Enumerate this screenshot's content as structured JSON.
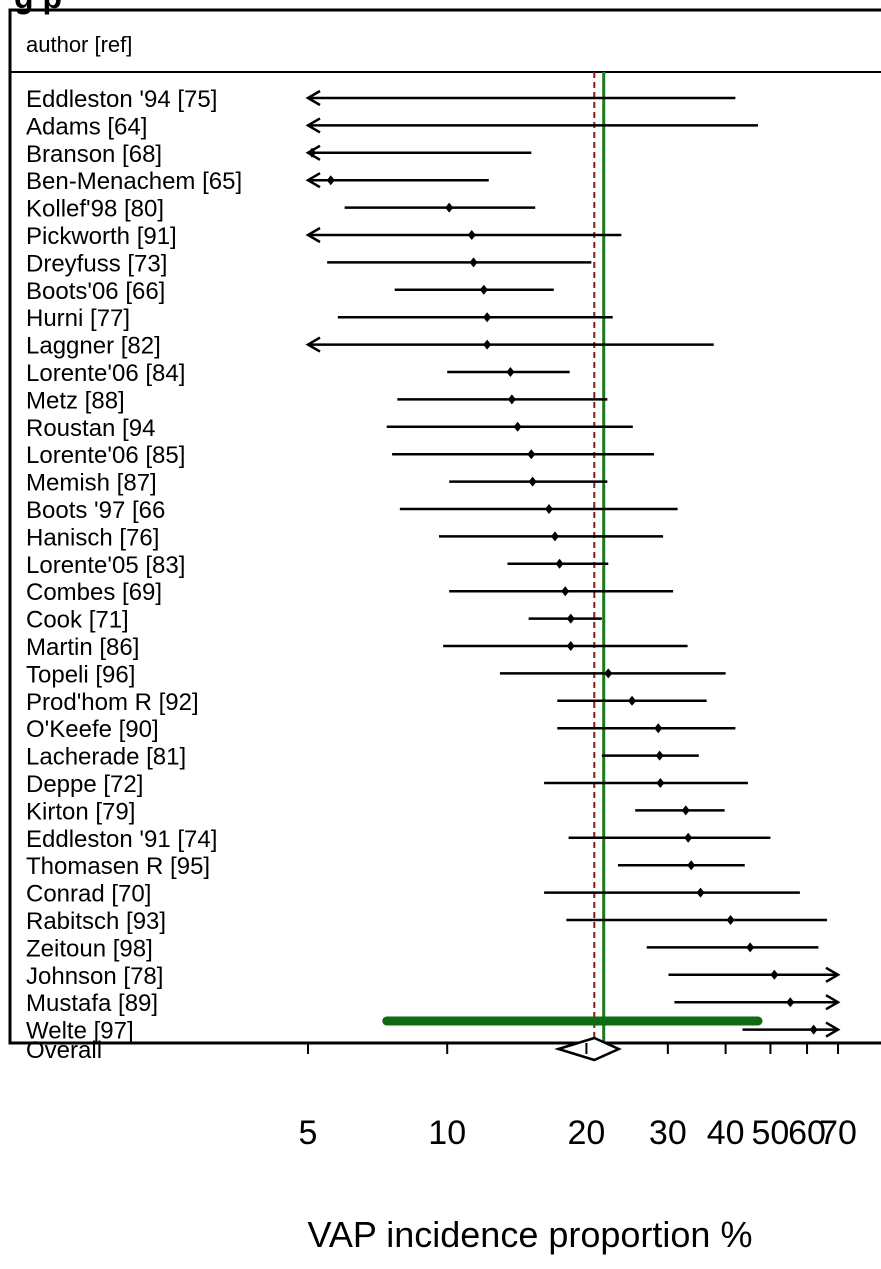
{
  "chart_data": {
    "type": "forest",
    "title_partial": "g p",
    "header": "author [ref]",
    "xlabel": "VAP incidence proportion %",
    "xscale": "log",
    "xlim": [
      5,
      70
    ],
    "xticks": [
      5,
      10,
      20,
      30,
      40,
      50,
      60,
      70
    ],
    "xtick_labels": [
      "5",
      "10",
      "20",
      "30",
      "40",
      "50",
      "60",
      "70"
    ],
    "reference_lines": {
      "overall_estimate": {
        "value": 20.8,
        "style": "dashed",
        "color": "#8b1a1a"
      },
      "pooled_line": {
        "value": 21.8,
        "style": "solid",
        "color": "#1b7a1b"
      }
    },
    "studies": [
      {
        "label": "Eddleston '94 [75]",
        "est": 1.0,
        "lo": 0.1,
        "hi": 42,
        "arrow_left": true,
        "arrow_right": false,
        "show_point": false
      },
      {
        "label": "Adams [64]",
        "est": 1.0,
        "lo": 0.1,
        "hi": 47,
        "arrow_left": true,
        "arrow_right": false,
        "show_point": false
      },
      {
        "label": "Branson [68]",
        "est": 5.1,
        "lo": 0.1,
        "hi": 15.2,
        "arrow_left": true,
        "arrow_right": false,
        "show_point": true
      },
      {
        "label": "Ben-Menachem [65]",
        "est": 5.6,
        "lo": 0.1,
        "hi": 12.3,
        "arrow_left": true,
        "arrow_right": false,
        "show_point": true
      },
      {
        "label": "Kollef'98 [80]",
        "est": 10.1,
        "lo": 6.0,
        "hi": 15.5,
        "arrow_left": false,
        "arrow_right": false,
        "show_point": true
      },
      {
        "label": "Pickworth [91]",
        "est": 11.3,
        "lo": 0.1,
        "hi": 23.8,
        "arrow_left": true,
        "arrow_right": false,
        "show_point": true
      },
      {
        "label": "Dreyfuss [73]",
        "est": 11.4,
        "lo": 5.5,
        "hi": 20.5,
        "arrow_left": false,
        "arrow_right": false,
        "show_point": true
      },
      {
        "label": "Boots'06 [66]",
        "est": 12.0,
        "lo": 7.7,
        "hi": 17.0,
        "arrow_left": false,
        "arrow_right": false,
        "show_point": true
      },
      {
        "label": "Hurni [77]",
        "est": 12.2,
        "lo": 5.8,
        "hi": 22.8,
        "arrow_left": false,
        "arrow_right": false,
        "show_point": true
      },
      {
        "label": "Laggner [82]",
        "est": 12.2,
        "lo": 0.1,
        "hi": 37.7,
        "arrow_left": true,
        "arrow_right": false,
        "show_point": true
      },
      {
        "label": "Lorente'06 [84]",
        "est": 13.7,
        "lo": 10.0,
        "hi": 18.4,
        "arrow_left": false,
        "arrow_right": false,
        "show_point": true
      },
      {
        "label": "Metz [88]",
        "est": 13.8,
        "lo": 7.8,
        "hi": 22.2,
        "arrow_left": false,
        "arrow_right": false,
        "show_point": true
      },
      {
        "label": "Roustan [94",
        "est": 14.2,
        "lo": 7.4,
        "hi": 25.2,
        "arrow_left": false,
        "arrow_right": false,
        "show_point": true
      },
      {
        "label": "Lorente'06 [85]",
        "est": 15.2,
        "lo": 7.6,
        "hi": 28.0,
        "arrow_left": false,
        "arrow_right": false,
        "show_point": true
      },
      {
        "label": "Memish [87]",
        "est": 15.3,
        "lo": 10.1,
        "hi": 22.2,
        "arrow_left": false,
        "arrow_right": false,
        "show_point": true
      },
      {
        "label": "Boots '97 [66",
        "est": 16.6,
        "lo": 7.9,
        "hi": 31.5,
        "arrow_left": false,
        "arrow_right": false,
        "show_point": true
      },
      {
        "label": "Hanisch [76]",
        "est": 17.1,
        "lo": 9.6,
        "hi": 29.3,
        "arrow_left": false,
        "arrow_right": false,
        "show_point": true
      },
      {
        "label": "Lorente'05 [83]",
        "est": 17.5,
        "lo": 13.5,
        "hi": 22.3,
        "arrow_left": false,
        "arrow_right": false,
        "show_point": true
      },
      {
        "label": "Combes [69]",
        "est": 18.0,
        "lo": 10.1,
        "hi": 30.8,
        "arrow_left": false,
        "arrow_right": false,
        "show_point": true
      },
      {
        "label": "Cook [71]",
        "est": 18.5,
        "lo": 15.0,
        "hi": 21.6,
        "arrow_left": false,
        "arrow_right": false,
        "show_point": true
      },
      {
        "label": "Martin [86]",
        "est": 18.5,
        "lo": 9.8,
        "hi": 33.1,
        "arrow_left": false,
        "arrow_right": false,
        "show_point": true
      },
      {
        "label": "Topeli [96]",
        "est": 22.3,
        "lo": 13.0,
        "hi": 40.0,
        "arrow_left": false,
        "arrow_right": false,
        "show_point": true
      },
      {
        "label": "Prod'hom R [92]",
        "est": 25.1,
        "lo": 17.3,
        "hi": 36.4,
        "arrow_left": false,
        "arrow_right": false,
        "show_point": true
      },
      {
        "label": "O'Keefe [90]",
        "est": 28.6,
        "lo": 17.3,
        "hi": 42.0,
        "arrow_left": false,
        "arrow_right": false,
        "show_point": true
      },
      {
        "label": "Lacherade [81]",
        "est": 28.8,
        "lo": 21.6,
        "hi": 35.0,
        "arrow_left": false,
        "arrow_right": false,
        "show_point": true
      },
      {
        "label": "Deppe [72]",
        "est": 28.9,
        "lo": 16.2,
        "hi": 44.7,
        "arrow_left": false,
        "arrow_right": false,
        "show_point": true
      },
      {
        "label": "Kirton [79]",
        "est": 32.8,
        "lo": 25.5,
        "hi": 39.8,
        "arrow_left": false,
        "arrow_right": false,
        "show_point": true
      },
      {
        "label": "Eddleston '91 [74]",
        "est": 33.2,
        "lo": 18.3,
        "hi": 50.0,
        "arrow_left": false,
        "arrow_right": false,
        "show_point": true
      },
      {
        "label": "Thomasen R [95]",
        "est": 33.7,
        "lo": 23.4,
        "hi": 44.0,
        "arrow_left": false,
        "arrow_right": false,
        "show_point": true
      },
      {
        "label": "Conrad [70]",
        "est": 35.3,
        "lo": 16.2,
        "hi": 57.9,
        "arrow_left": false,
        "arrow_right": false,
        "show_point": true
      },
      {
        "label": "Rabitsch [93]",
        "est": 41.0,
        "lo": 18.1,
        "hi": 66.3,
        "arrow_left": false,
        "arrow_right": false,
        "show_point": true
      },
      {
        "label": "Zeitoun [98]",
        "est": 45.2,
        "lo": 27.0,
        "hi": 63.5,
        "arrow_left": false,
        "arrow_right": false,
        "show_point": true
      },
      {
        "label": "Johnson [78]",
        "est": 51.0,
        "lo": 30.1,
        "hi": 70,
        "arrow_left": false,
        "arrow_right": true,
        "show_point": true
      },
      {
        "label": "Mustafa [89]",
        "est": 55.2,
        "lo": 31.0,
        "hi": 70,
        "arrow_left": false,
        "arrow_right": true,
        "show_point": true
      },
      {
        "label": "Welte [97]",
        "est": 62.0,
        "lo": 43.5,
        "hi": 70,
        "arrow_left": false,
        "arrow_right": true,
        "show_point": true
      }
    ],
    "overall": {
      "label": "Overall",
      "est": 20.8,
      "lo": 17.4,
      "hi": 23.5
    },
    "prediction_interval": {
      "lo": 7.4,
      "hi": 47.0,
      "color": "#0f6b12"
    }
  }
}
